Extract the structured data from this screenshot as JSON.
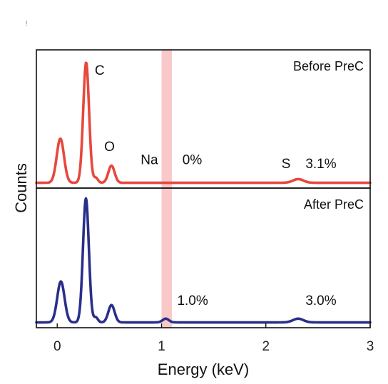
{
  "page_mark": "!",
  "chart_data": {
    "type": "line",
    "xlabel": "Energy (keV)",
    "ylabel": "Counts",
    "xlim": [
      -0.2,
      3.0
    ],
    "xticks": [
      0,
      1,
      2,
      3
    ],
    "highlight_band": {
      "x_range": [
        1.0,
        1.1
      ],
      "color": "#f9c9c9"
    },
    "panels": [
      {
        "label": "Before PreC",
        "color": "#e8473d",
        "baseline": 0.02,
        "ylim": [
          0,
          1.08
        ],
        "peaks": [
          {
            "center": 0.03,
            "height": 0.36,
            "width": 0.035
          },
          {
            "center": 0.277,
            "height": 0.98,
            "width": 0.028
          },
          {
            "center": 0.37,
            "height": 0.04,
            "width": 0.02
          },
          {
            "center": 0.52,
            "height": 0.14,
            "width": 0.03
          },
          {
            "center": 2.31,
            "height": 0.03,
            "width": 0.05
          }
        ],
        "annotations": [
          {
            "text": "C",
            "x": 0.36,
            "y": 0.9
          },
          {
            "text": "O",
            "x": 0.45,
            "y": 0.28
          },
          {
            "text": "Na",
            "x": 0.8,
            "y": 0.17
          },
          {
            "text": "0%",
            "x": 1.2,
            "y": 0.17
          },
          {
            "text": "S",
            "x": 2.15,
            "y": 0.14
          },
          {
            "text": "3.1%",
            "x": 2.38,
            "y": 0.14
          }
        ]
      },
      {
        "label": "After PreC",
        "color": "#2a2f8a",
        "baseline": 0.02,
        "ylim": [
          0,
          1.08
        ],
        "peaks": [
          {
            "center": 0.035,
            "height": 0.33,
            "width": 0.035
          },
          {
            "center": 0.275,
            "height": 1.0,
            "width": 0.028
          },
          {
            "center": 0.37,
            "height": 0.04,
            "width": 0.02
          },
          {
            "center": 0.52,
            "height": 0.14,
            "width": 0.03
          },
          {
            "center": 1.04,
            "height": 0.03,
            "width": 0.03
          },
          {
            "center": 2.31,
            "height": 0.03,
            "width": 0.05
          }
        ],
        "annotations": [
          {
            "text": "1.0%",
            "x": 1.15,
            "y": 0.16
          },
          {
            "text": "3.0%",
            "x": 2.38,
            "y": 0.16
          }
        ]
      }
    ]
  }
}
